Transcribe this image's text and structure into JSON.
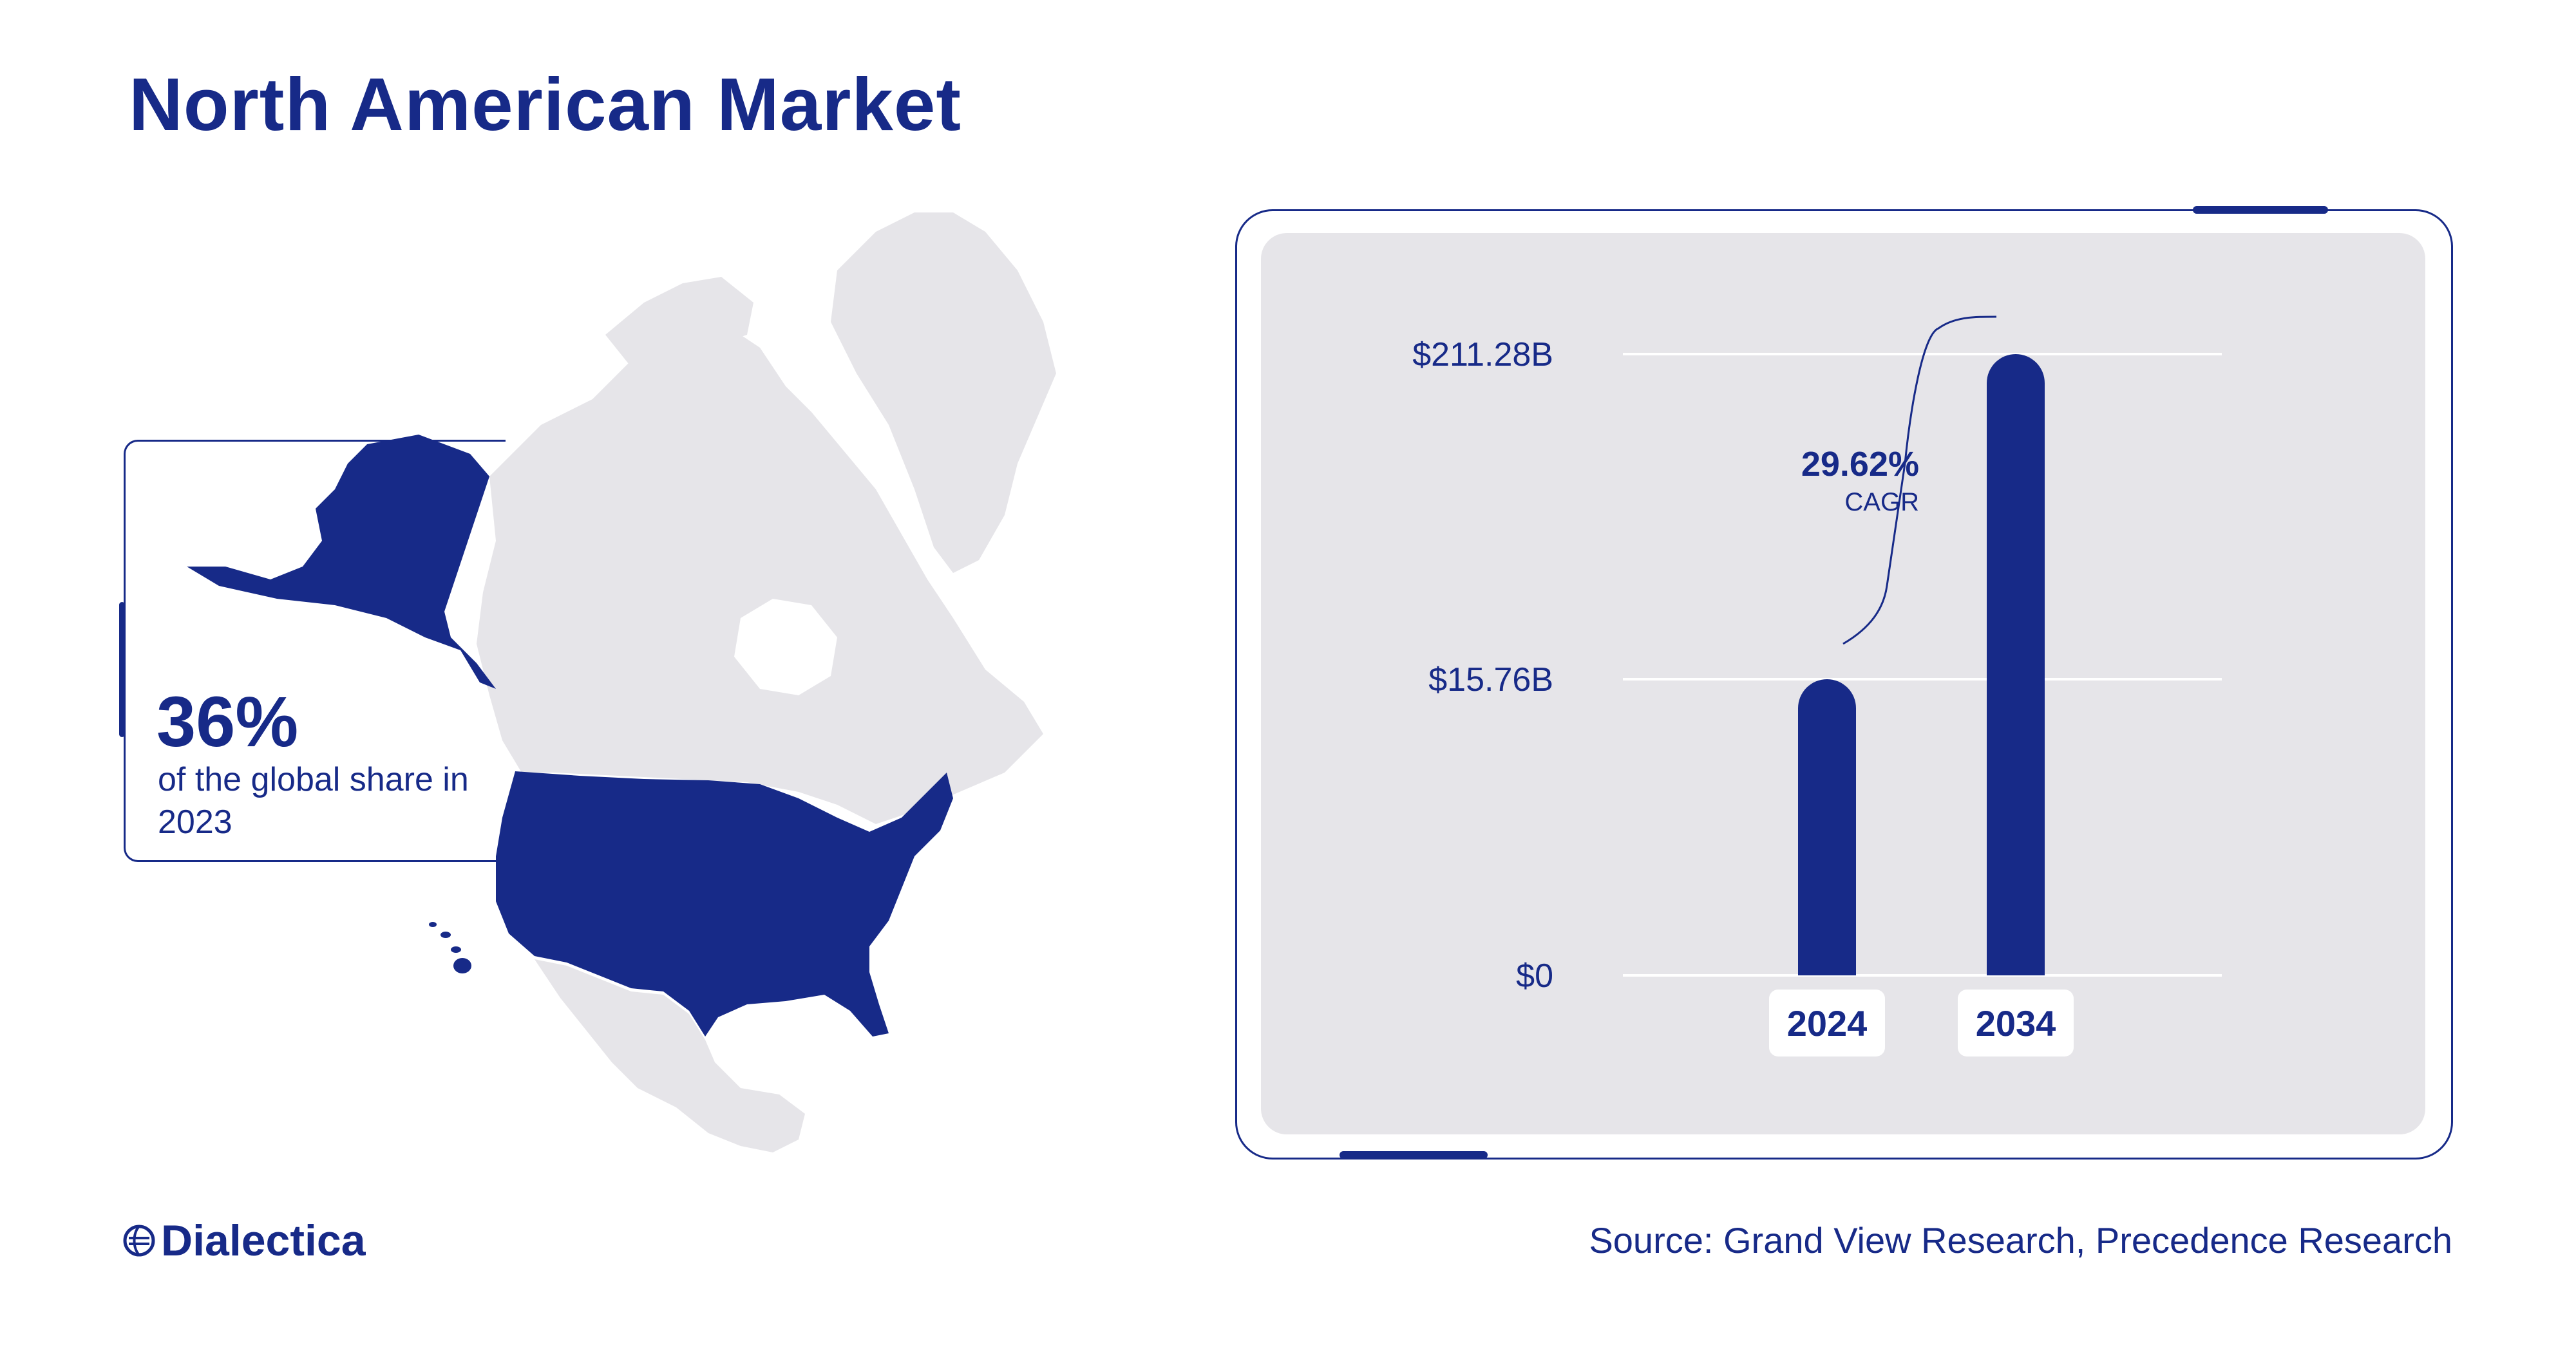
{
  "header": {
    "title": "North American Market"
  },
  "map_callout": {
    "share_value": "36%",
    "share_description": "of the global share in 2023"
  },
  "chart_data": {
    "type": "bar",
    "categories": [
      "2024",
      "2034"
    ],
    "series": [
      {
        "values": [
          15.76,
          211.28
        ]
      }
    ],
    "y_tick_labels": [
      "$0",
      "$15.76B",
      "$211.28B"
    ],
    "y_ticks": [
      0,
      15.76,
      211.28
    ],
    "y_scale": "non-linear (the three gridlines are the printed values)",
    "annotation": {
      "value": "29.62%",
      "label": "CAGR"
    },
    "grid": true,
    "legend": "none"
  },
  "footer": {
    "brand": "Dialectica",
    "source": "Source: Grand View Research, Precedence Research"
  },
  "colors": {
    "navy": "#172a88",
    "map_gray": "#e6e5e9",
    "panel_gray": "#e6e5e9"
  },
  "icons": [
    "dialectica-globe-icon"
  ]
}
